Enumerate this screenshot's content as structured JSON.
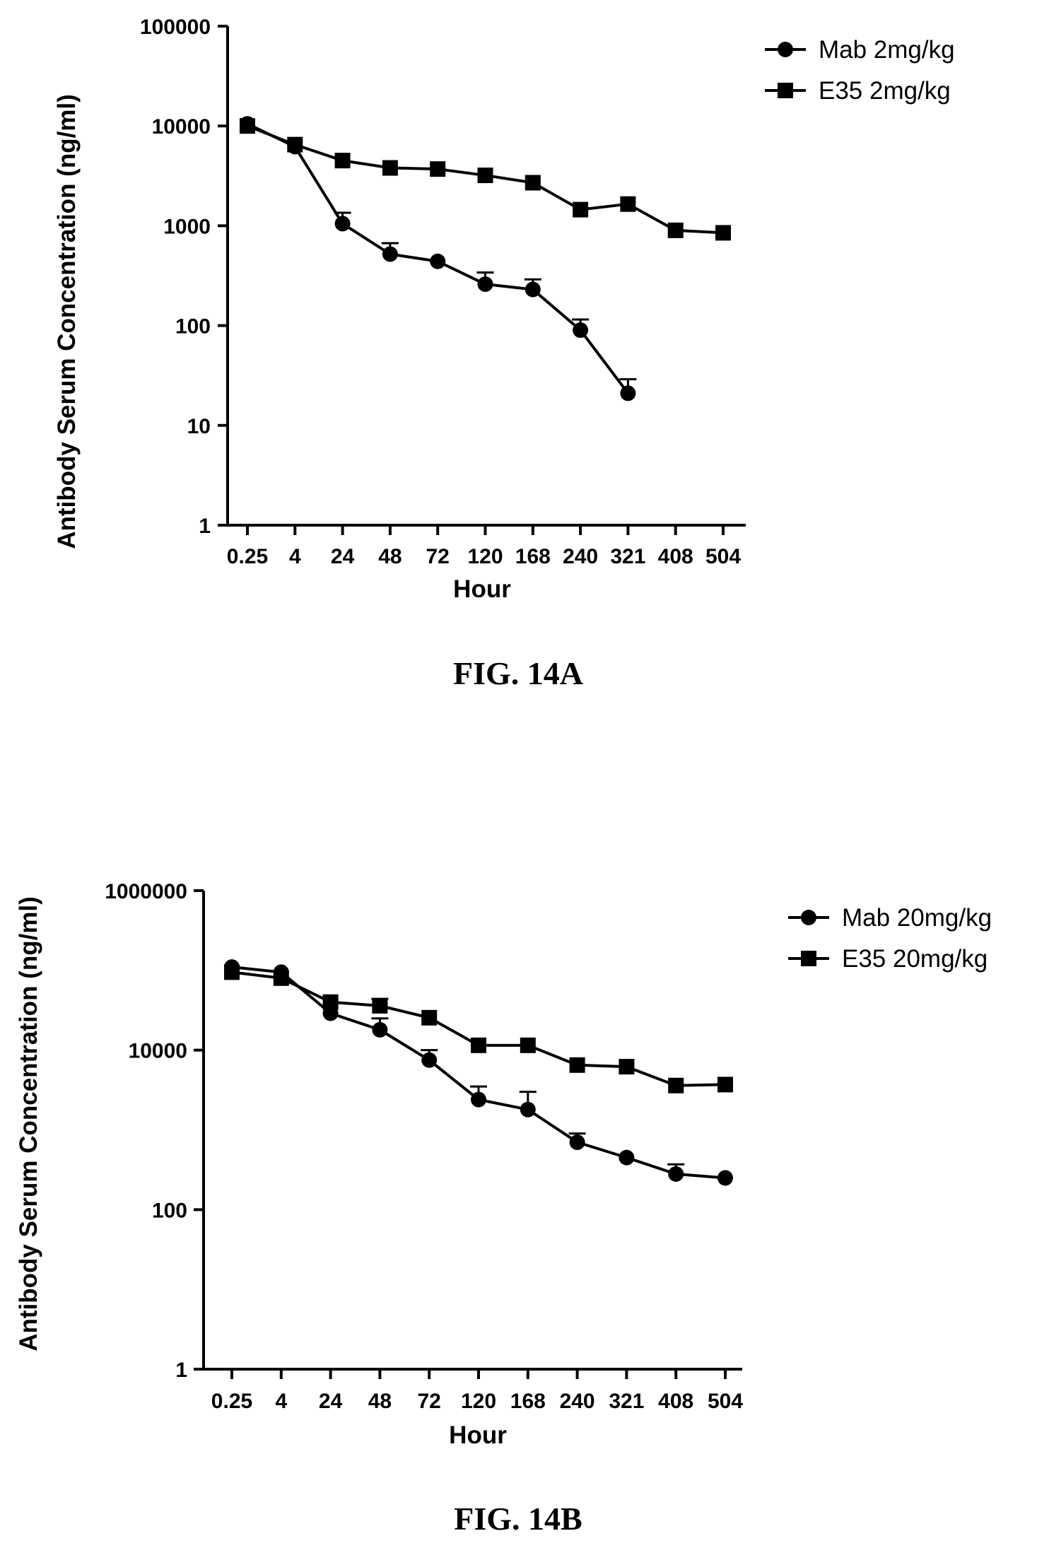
{
  "chart_data": [
    {
      "type": "line",
      "title": "",
      "caption": "FIG. 14A",
      "xlabel": "Hour",
      "ylabel": "Antibody Serum Concentration (ng/ml)",
      "y_scale": "log",
      "ylim": [
        1,
        100000
      ],
      "y_ticks": [
        1,
        10,
        100,
        1000,
        10000,
        100000
      ],
      "y_tick_labels": [
        "1",
        "10",
        "100",
        "1000",
        "10000",
        "100000"
      ],
      "categories": [
        "0.25",
        "4",
        "24",
        "48",
        "72",
        "120",
        "168",
        "240",
        "321",
        "408",
        "504"
      ],
      "legend_position": "top-right",
      "series": [
        {
          "name": "Mab 2mg/kg",
          "marker": "circle",
          "values": [
            10500,
            6200,
            1050,
            520,
            440,
            260,
            230,
            90,
            21,
            null,
            null
          ],
          "errors": [
            0,
            0,
            300,
            150,
            0,
            80,
            60,
            25,
            8,
            null,
            null
          ]
        },
        {
          "name": "E35 2mg/kg",
          "marker": "square",
          "values": [
            10000,
            6500,
            4500,
            3800,
            3700,
            3200,
            2700,
            1450,
            1650,
            900,
            850
          ],
          "errors": [
            0,
            0,
            0,
            0,
            0,
            0,
            0,
            0,
            0,
            0,
            0
          ]
        }
      ]
    },
    {
      "type": "line",
      "title": "",
      "caption": "FIG. 14B",
      "xlabel": "Hour",
      "ylabel": "Antibody Serum Concentration (ng/ml)",
      "y_scale": "log",
      "ylim": [
        1,
        1000000
      ],
      "y_ticks": [
        1,
        100,
        10000,
        1000000
      ],
      "y_tick_labels": [
        "1",
        "100",
        "10000",
        "1000000"
      ],
      "categories": [
        "0.25",
        "4",
        "24",
        "48",
        "72",
        "120",
        "168",
        "240",
        "321",
        "408",
        "504"
      ],
      "legend_position": "top-right",
      "series": [
        {
          "name": "Mab 20mg/kg",
          "marker": "circle",
          "values": [
            110000,
            95000,
            29000,
            18000,
            7500,
            2400,
            1800,
            700,
            450,
            280,
            250
          ],
          "errors": [
            0,
            0,
            0,
            7000,
            2500,
            1100,
            1200,
            200,
            0,
            90,
            0
          ]
        },
        {
          "name": "E35 20mg/kg",
          "marker": "square",
          "values": [
            95000,
            80000,
            40000,
            36000,
            25500,
            11500,
            11500,
            6500,
            6200,
            3600,
            3700
          ],
          "errors": [
            0,
            0,
            0,
            8000,
            0,
            0,
            0,
            0,
            0,
            0,
            0
          ]
        }
      ]
    }
  ]
}
